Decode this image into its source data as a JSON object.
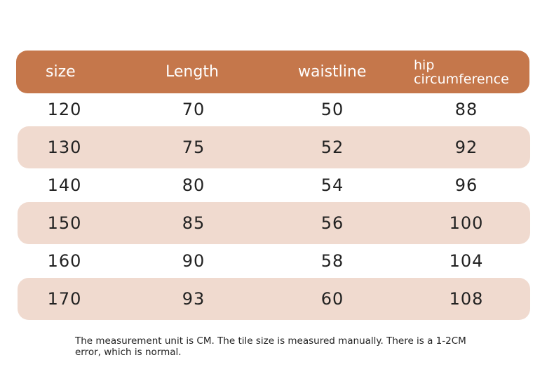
{
  "table": {
    "header": [
      "size",
      "Length",
      "waistline",
      "hip circumference"
    ],
    "rows": [
      [
        120,
        70,
        50,
        88
      ],
      [
        130,
        75,
        52,
        92
      ],
      [
        140,
        80,
        54,
        96
      ],
      [
        150,
        85,
        56,
        100
      ],
      [
        160,
        90,
        58,
        104
      ],
      [
        170,
        93,
        60,
        108
      ]
    ]
  },
  "note": "The measurement unit is CM. The tile size is measured manually. There is a 1-2CM error, which is normal."
}
